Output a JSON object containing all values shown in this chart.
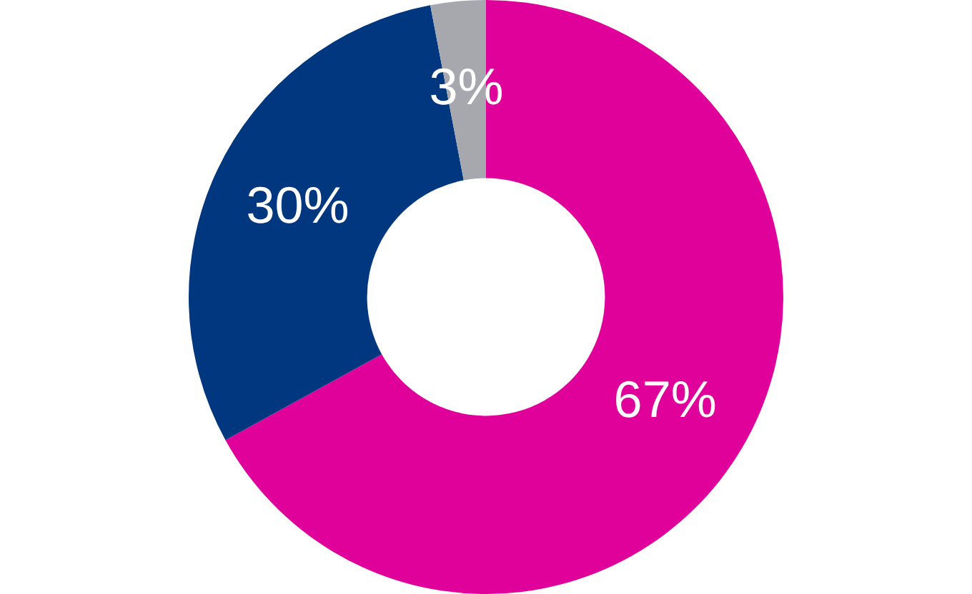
{
  "chart_data": {
    "type": "donut",
    "categories": [
      null,
      null,
      null
    ],
    "values": [
      67,
      30,
      3
    ],
    "colors": [
      "#e0009a",
      "#00377f",
      "#a6a8ae"
    ],
    "value_labels": [
      "67%",
      "30%",
      "3%"
    ]
  }
}
